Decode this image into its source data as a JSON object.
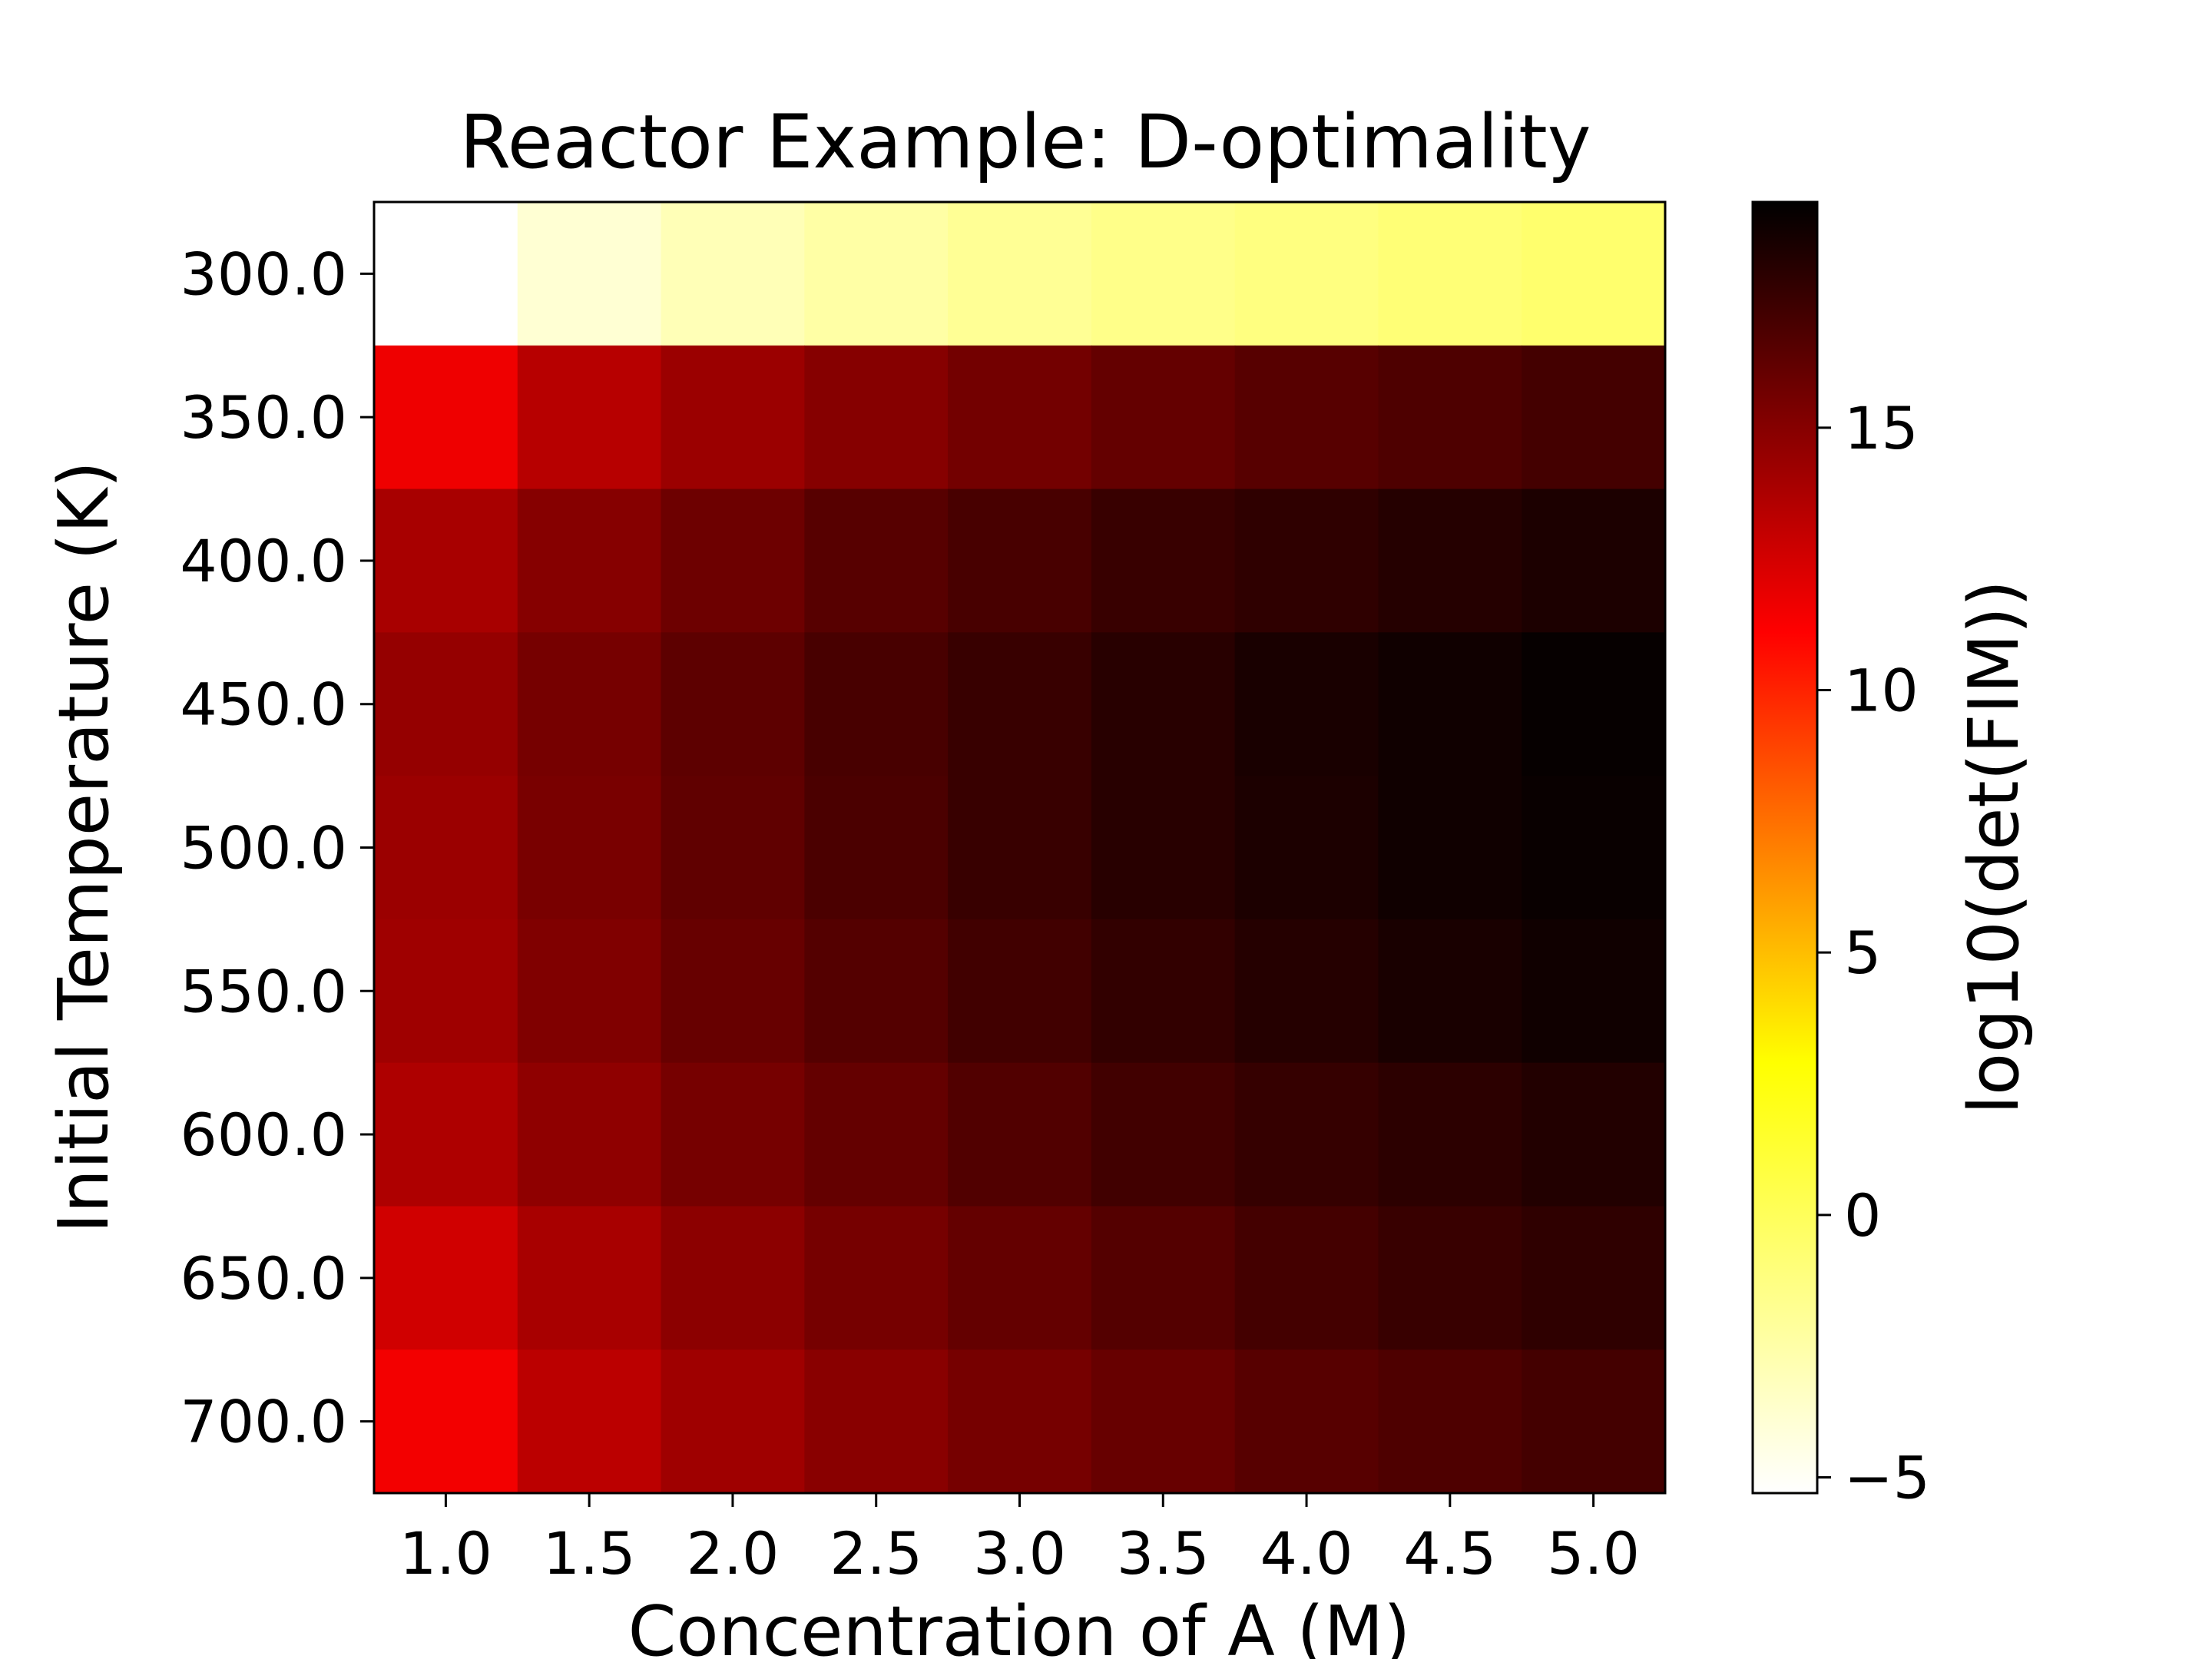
{
  "chart_data": {
    "type": "heatmap",
    "title": "Reactor Example: D-optimality",
    "xlabel": "Concentration of A (M)",
    "ylabel": "Initial Temperature (K)",
    "colorbar_label": "log10(det(FIM))",
    "x": [
      1.0,
      1.5,
      2.0,
      2.5,
      3.0,
      3.5,
      4.0,
      4.5,
      5.0
    ],
    "y": [
      300.0,
      350.0,
      400.0,
      450.0,
      500.0,
      550.0,
      600.0,
      650.0,
      700.0
    ],
    "x_tick_labels": [
      "1.0",
      "1.5",
      "2.0",
      "2.5",
      "3.0",
      "3.5",
      "4.0",
      "4.5",
      "5.0"
    ],
    "y_tick_labels": [
      "300.0",
      "350.0",
      "400.0",
      "450.0",
      "500.0",
      "550.0",
      "600.0",
      "650.0",
      "700.0"
    ],
    "values": [
      [
        -5.3,
        -3.9,
        -3.0,
        -2.4,
        -1.9,
        -1.5,
        -1.2,
        -0.9,
        -0.6
      ],
      [
        11.6,
        13.4,
        14.3,
        15.0,
        15.6,
        16.1,
        16.5,
        16.8,
        17.1
      ],
      [
        13.9,
        15.0,
        15.8,
        16.5,
        17.0,
        17.5,
        17.8,
        18.1,
        18.4
      ],
      [
        14.5,
        15.5,
        16.3,
        17.0,
        17.5,
        18.0,
        18.5,
        18.8,
        19.1
      ],
      [
        14.3,
        15.4,
        16.2,
        16.9,
        17.5,
        18.0,
        18.4,
        18.8,
        19.0
      ],
      [
        14.2,
        15.2,
        16.0,
        16.6,
        17.2,
        17.7,
        18.1,
        18.5,
        18.8
      ],
      [
        13.7,
        14.7,
        15.5,
        16.1,
        16.7,
        17.2,
        17.6,
        17.9,
        18.2
      ],
      [
        12.6,
        13.9,
        14.8,
        15.5,
        16.1,
        16.6,
        17.1,
        17.5,
        17.8
      ],
      [
        11.5,
        13.3,
        14.2,
        14.9,
        15.5,
        16.0,
        16.5,
        16.8,
        17.1
      ]
    ],
    "colorbar_range": [
      -5.3,
      19.3
    ],
    "colorbar_ticks": [
      -5,
      0,
      5,
      10,
      15
    ],
    "colorbar_tick_labels": [
      "−5",
      "0",
      "5",
      "10",
      "15"
    ],
    "colormap": "hot_r",
    "colormap_stops": [
      "#ffffff",
      "#ffff00",
      "#ff0000",
      "#000000"
    ],
    "grid": false,
    "legend": "colorbar-right"
  }
}
